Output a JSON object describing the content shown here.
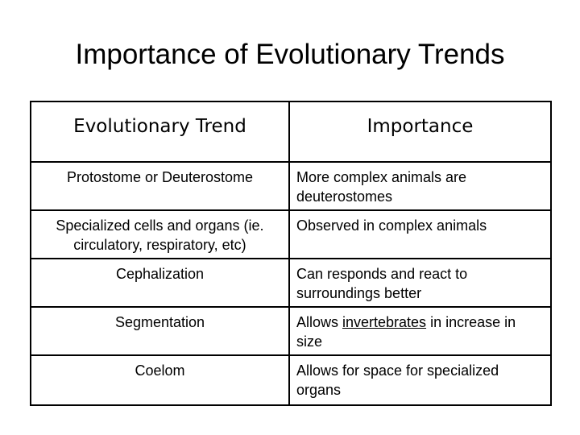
{
  "slide": {
    "title": "Importance of Evolutionary Trends"
  },
  "table": {
    "headers": {
      "trend": "Evolutionary Trend",
      "importance": "Importance"
    },
    "rows": [
      {
        "trend": "Protostome or Deuterostome",
        "importance": "More complex animals are deuterostomes"
      },
      {
        "trend": "Specialized cells and organs (ie. circulatory, respiratory, etc)",
        "importance": "Observed in complex animals"
      },
      {
        "trend": "Cephalization",
        "importance": "Can responds and react to surroundings better"
      },
      {
        "trend": "Segmentation",
        "importance_before": "Allows ",
        "importance_underlined": "invertebrates",
        "importance_after": " in increase in size"
      },
      {
        "trend": "Coelom",
        "importance": "Allows for space for specialized organs"
      }
    ]
  }
}
